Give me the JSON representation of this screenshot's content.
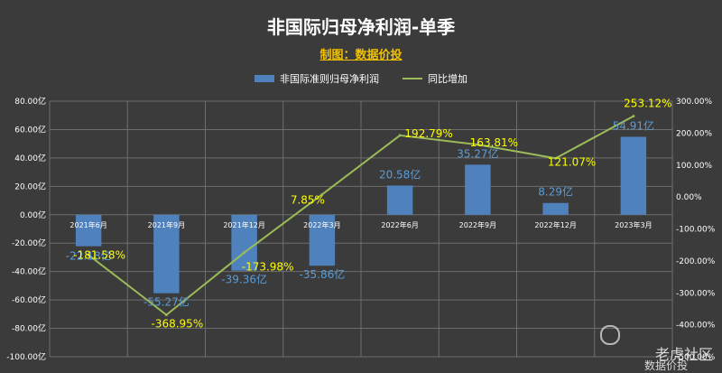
{
  "title": "非国际归母净利润-单季",
  "subtitle": "制图：数据价投",
  "legend": [
    {
      "label": "非国际准则归母净利润",
      "type": "bar",
      "color": "#4f81bd"
    },
    {
      "label": "同比增加",
      "type": "line",
      "color": "#9bbb59"
    }
  ],
  "watermark": {
    "brand": "老虎社区",
    "author": "数据价投"
  },
  "chart_data": {
    "type": "bar",
    "categories": [
      "2021年6月",
      "2021年9月",
      "2021年12月",
      "2022年3月",
      "2022年6月",
      "2022年9月",
      "2022年12月",
      "2023年3月"
    ],
    "series": [
      {
        "name": "非国际准则归母净利润",
        "type": "bar",
        "axis": "left",
        "values": [
          -22.18,
          -55.27,
          -39.36,
          -35.86,
          20.58,
          35.27,
          8.29,
          54.91
        ],
        "labels": [
          "-22.18亿",
          "-55.27亿",
          "-39.36亿",
          "-35.86亿",
          "20.58亿",
          "35.27亿",
          "8.29亿",
          "54.91亿"
        ]
      },
      {
        "name": "同比增加",
        "type": "line",
        "axis": "right",
        "values": [
          -181.58,
          -368.95,
          -173.98,
          7.85,
          192.79,
          163.81,
          121.07,
          253.12
        ],
        "labels": [
          "-181.58%",
          "-368.95%",
          "-173.98%",
          "7.85%",
          "192.79%",
          "163.81%",
          "121.07%",
          "253.12%"
        ]
      }
    ],
    "y_left": {
      "min": -100,
      "max": 80,
      "ticks": [
        "80.00亿",
        "60.00亿",
        "40.00亿",
        "20.00亿",
        "0.00亿",
        "-20.00亿",
        "-40.00亿",
        "-60.00亿",
        "-80.00亿",
        "-100.00亿"
      ]
    },
    "y_right": {
      "min": -500,
      "max": 300,
      "ticks": [
        "300.00%",
        "200.00%",
        "100.00%",
        "0.00%",
        "-100.00%",
        "-200.00%",
        "-300.00%",
        "-400.00%",
        "-500.00%"
      ]
    },
    "grid": true,
    "legend_position": "top",
    "colors": {
      "bar": "#4f81bd",
      "line": "#9bbb59",
      "bar_label": "#5b9bd5",
      "line_label": "#ffff00",
      "background": "#3b3b3b",
      "grid": "#6e6e6e"
    }
  }
}
